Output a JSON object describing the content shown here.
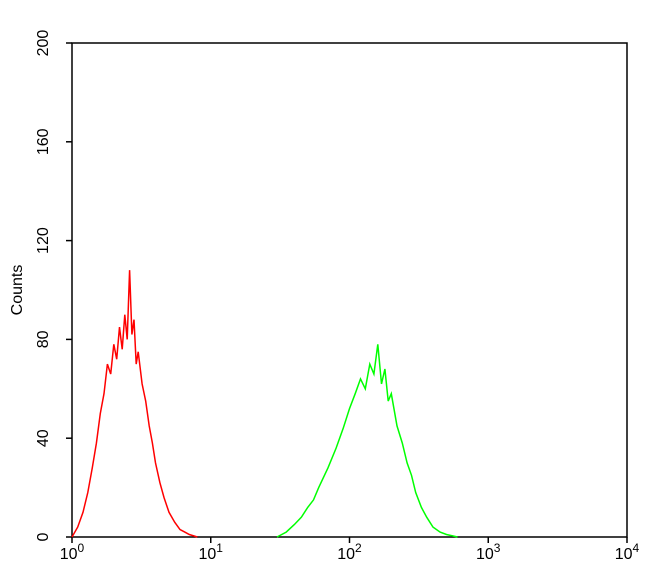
{
  "chart_data": {
    "type": "line",
    "y_label": "Counts",
    "xscale": "log",
    "xlim": [
      1,
      10000
    ],
    "ylim": [
      0,
      200
    ],
    "xticks": [
      {
        "value": 1,
        "label": "10",
        "exponent": "0"
      },
      {
        "value": 10,
        "label": "10",
        "exponent": "1"
      },
      {
        "value": 100,
        "label": "10",
        "exponent": "2"
      },
      {
        "value": 1000,
        "label": "10",
        "exponent": "3"
      },
      {
        "value": 10000,
        "label": "10",
        "exponent": "4"
      }
    ],
    "yticks": [
      0,
      40,
      80,
      120,
      160,
      200
    ],
    "series": [
      {
        "color": "#ff0000",
        "x": [
          1.0,
          1.1,
          1.2,
          1.3,
          1.4,
          1.5,
          1.6,
          1.7,
          1.8,
          1.9,
          2.0,
          2.1,
          2.2,
          2.3,
          2.4,
          2.5,
          2.6,
          2.7,
          2.8,
          2.9,
          3.0,
          3.2,
          3.4,
          3.6,
          3.8,
          4.0,
          4.3,
          4.6,
          5.0,
          5.5,
          6.0,
          6.5,
          7.0,
          8.0
        ],
        "values": [
          0,
          4,
          10,
          18,
          28,
          38,
          50,
          58,
          70,
          66,
          78,
          72,
          85,
          76,
          90,
          80,
          108,
          82,
          88,
          70,
          75,
          62,
          55,
          45,
          38,
          30,
          22,
          16,
          10,
          6,
          3,
          2,
          1,
          0
        ]
      },
      {
        "color": "#00ff00",
        "x": [
          30,
          35,
          40,
          45,
          50,
          55,
          60,
          70,
          80,
          90,
          100,
          110,
          120,
          130,
          140,
          150,
          160,
          170,
          180,
          190,
          200,
          220,
          240,
          260,
          280,
          300,
          330,
          360,
          400,
          450,
          500,
          600
        ],
        "values": [
          0,
          2,
          5,
          8,
          12,
          15,
          20,
          28,
          36,
          44,
          52,
          58,
          64,
          60,
          70,
          66,
          78,
          62,
          68,
          55,
          58,
          45,
          38,
          30,
          25,
          18,
          12,
          8,
          4,
          2,
          1,
          0
        ]
      }
    ]
  }
}
